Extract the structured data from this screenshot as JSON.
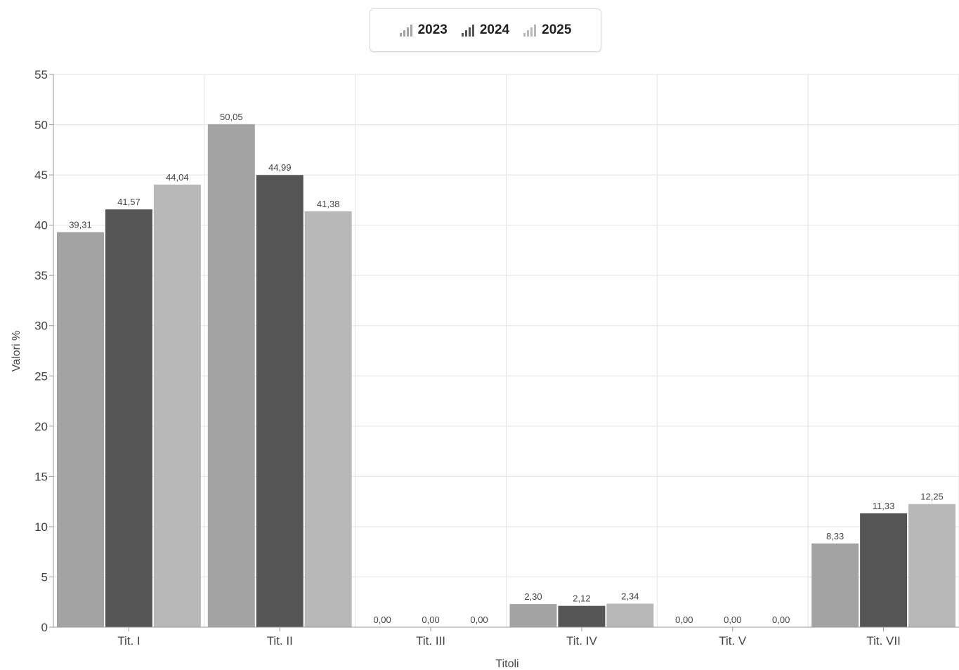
{
  "legend": {
    "items": [
      {
        "label": "2023",
        "color": "#a3a3a3",
        "icon": "bar-chart-icon"
      },
      {
        "label": "2024",
        "color": "#555555",
        "icon": "bar-chart-icon"
      },
      {
        "label": "2025",
        "color": "#b8b8b8",
        "icon": "bar-chart-icon"
      }
    ]
  },
  "chart_data": {
    "type": "bar",
    "categories": [
      "Tit. I",
      "Tit. II",
      "Tit. III",
      "Tit. IV",
      "Tit. V",
      "Tit. VII"
    ],
    "series": [
      {
        "name": "2023",
        "color": "#a3a3a3",
        "values": [
          39.31,
          50.05,
          0.0,
          2.3,
          0.0,
          8.33
        ],
        "labels": [
          "39,31",
          "50,05",
          "0,00",
          "2,30",
          "0,00",
          "8,33"
        ]
      },
      {
        "name": "2024",
        "color": "#555555",
        "values": [
          41.57,
          44.99,
          0.0,
          2.12,
          0.0,
          11.33
        ],
        "labels": [
          "41,57",
          "44,99",
          "0,00",
          "2,12",
          "0,00",
          "11,33"
        ]
      },
      {
        "name": "2025",
        "color": "#b8b8b8",
        "values": [
          44.04,
          41.38,
          0.0,
          2.34,
          0.0,
          12.25
        ],
        "labels": [
          "44,04",
          "41,38",
          "0,00",
          "2,34",
          "0,00",
          "12,25"
        ]
      }
    ],
    "xlabel": "Titoli",
    "ylabel": "Valori %",
    "ylim": [
      0,
      55
    ],
    "yticks": [
      0,
      5,
      10,
      15,
      20,
      25,
      30,
      35,
      40,
      45,
      50,
      55
    ],
    "grid": true,
    "legend_position": "top-center"
  }
}
